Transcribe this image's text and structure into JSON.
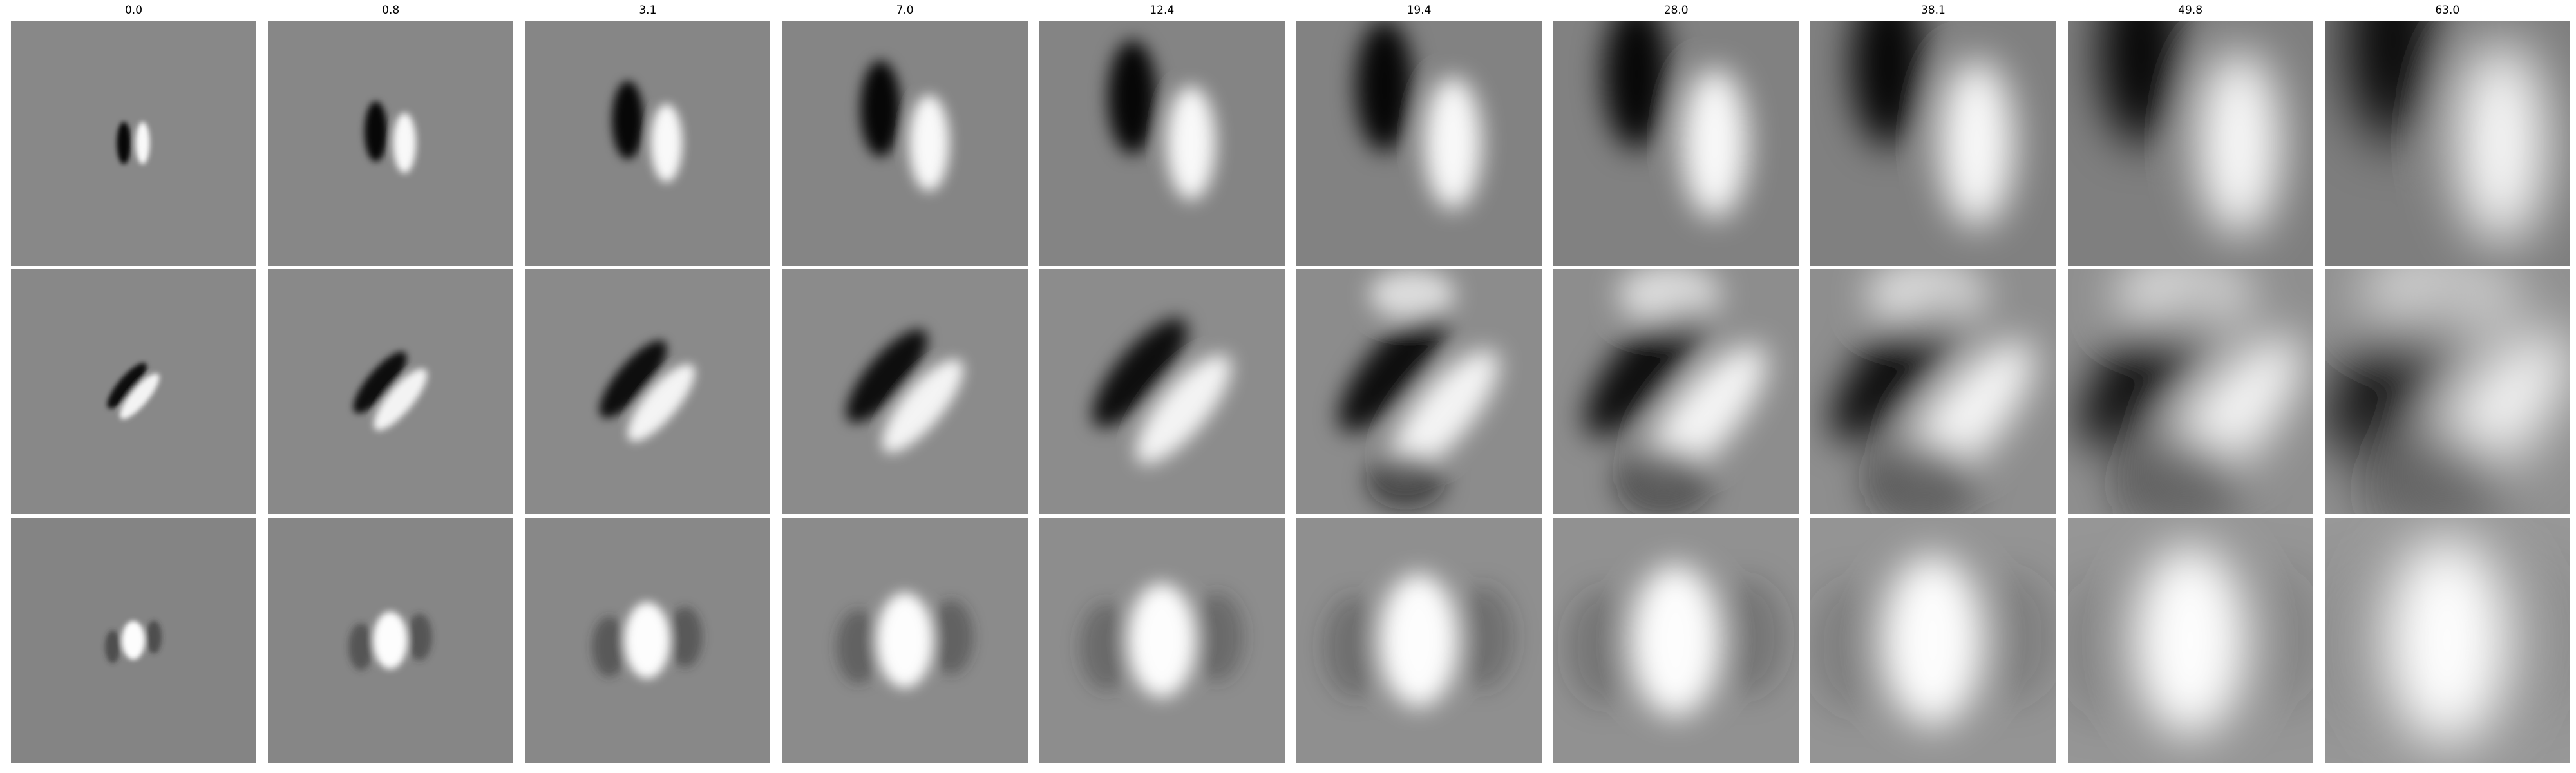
{
  "figure": {
    "column_titles": [
      "0.0",
      "0.8",
      "3.1",
      "7.0",
      "12.4",
      "19.4",
      "28.0",
      "38.1",
      "49.8",
      "63.0"
    ],
    "rows": 3,
    "colormap": "grayscale",
    "colors": {
      "background": "#ffffff",
      "tile_gray": "#888888",
      "dark": "#000000",
      "light": "#ffffff"
    }
  }
}
